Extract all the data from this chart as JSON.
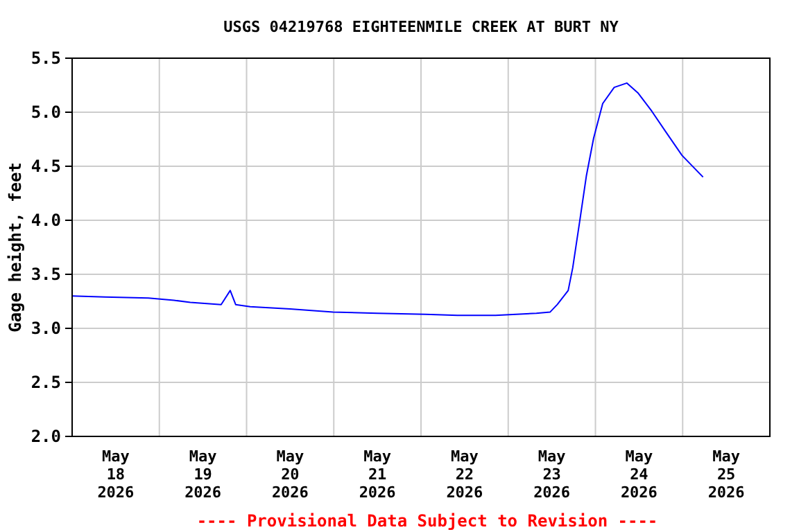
{
  "chart_data": {
    "type": "line",
    "title": "USGS 04219768 EIGHTEENMILE CREEK AT BURT NY",
    "ylabel": "Gage height, feet",
    "annotations": [
      "---- Provisional Data Subject to Revision ----"
    ],
    "x": [
      "2026-05-18T00:00",
      "2026-05-18T09:00",
      "2026-05-18T21:00",
      "2026-05-19T04:00",
      "2026-05-19T08:30",
      "2026-05-19T17:00",
      "2026-05-19T19:30",
      "2026-05-19T21:00",
      "2026-05-20T01:00",
      "2026-05-20T12:00",
      "2026-05-20T23:45",
      "2026-05-21T12:00",
      "2026-05-22T01:15",
      "2026-05-22T10:00",
      "2026-05-22T20:30",
      "2026-05-23T07:45",
      "2026-05-23T11:30",
      "2026-05-23T13:30",
      "2026-05-23T16:30",
      "2026-05-23T17:45",
      "2026-05-23T19:40",
      "2026-05-23T21:30",
      "2026-05-23T23:30",
      "2026-05-24T02:00",
      "2026-05-24T05:10",
      "2026-05-24T08:40",
      "2026-05-24T11:40",
      "2026-05-24T15:30",
      "2026-05-24T19:20",
      "2026-05-24T23:50",
      "2026-05-25T05:37"
    ],
    "series": [
      {
        "color": "#0000ff",
        "values": [
          3.3,
          3.29,
          3.28,
          3.26,
          3.24,
          3.22,
          3.35,
          3.22,
          3.2,
          3.18,
          3.15,
          3.14,
          3.13,
          3.12,
          3.12,
          3.14,
          3.15,
          3.22,
          3.35,
          3.56,
          3.99,
          4.41,
          4.76,
          5.08,
          5.23,
          5.27,
          5.18,
          5.01,
          4.82,
          4.6,
          4.4
        ]
      }
    ],
    "xlim": [
      "2026-05-18T00:00",
      "2026-05-26T00:00"
    ],
    "xticks": [
      {
        "value": "2026-05-18T12:00",
        "label": "May\n18\n2026"
      },
      {
        "value": "2026-05-19T00:00",
        "label": null
      },
      {
        "value": "2026-05-19T12:00",
        "label": "May\n19\n2026"
      },
      {
        "value": "2026-05-20T00:00",
        "label": null
      },
      {
        "value": "2026-05-20T12:00",
        "label": "May\n20\n2026"
      },
      {
        "value": "2026-05-21T00:00",
        "label": null
      },
      {
        "value": "2026-05-21T12:00",
        "label": "May\n21\n2026"
      },
      {
        "value": "2026-05-22T00:00",
        "label": null
      },
      {
        "value": "2026-05-22T12:00",
        "label": "May\n22\n2026"
      },
      {
        "value": "2026-05-23T00:00",
        "label": null
      },
      {
        "value": "2026-05-23T12:00",
        "label": "May\n23\n2026"
      },
      {
        "value": "2026-05-24T00:00",
        "label": null
      },
      {
        "value": "2026-05-24T12:00",
        "label": "May\n24\n2026"
      },
      {
        "value": "2026-05-25T00:00",
        "label": null
      },
      {
        "value": "2026-05-25T12:00",
        "label": "May\n25\n2026"
      }
    ],
    "ylim": [
      2.0,
      5.5
    ],
    "yticks": [
      {
        "value": 2.0,
        "label": "2.0"
      },
      {
        "value": 2.5,
        "label": "2.5"
      },
      {
        "value": 3.0,
        "label": "3.0"
      },
      {
        "value": 3.5,
        "label": "3.5"
      },
      {
        "value": 4.0,
        "label": "4.0"
      },
      {
        "value": 4.5,
        "label": "4.5"
      },
      {
        "value": 5.0,
        "label": "5.0"
      },
      {
        "value": 5.5,
        "label": "5.5"
      }
    ],
    "grid": true,
    "marker": "none",
    "line_style": "solid"
  }
}
